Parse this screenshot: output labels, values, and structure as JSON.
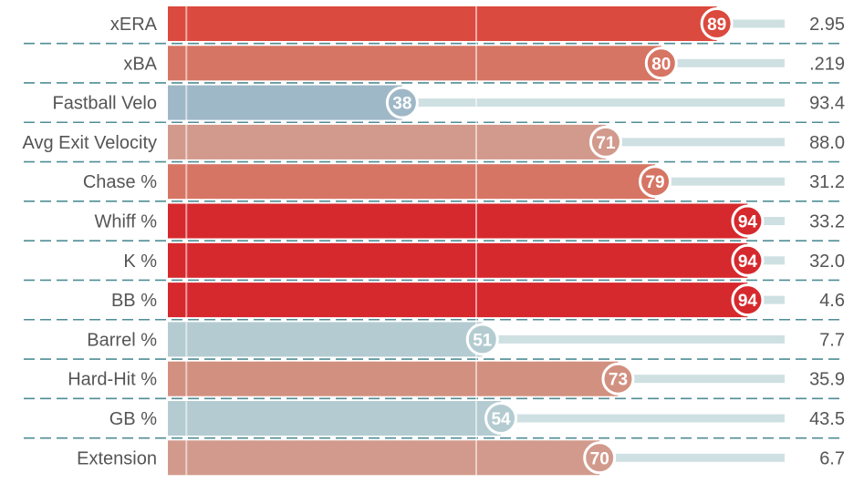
{
  "chart_data": {
    "type": "bar",
    "orientation": "horizontal",
    "xlim": [
      0,
      100
    ],
    "percentile_scale_midpoint": 50,
    "categories": [
      "xERA",
      "xBA",
      "Fastball Velo",
      "Avg Exit Velocity",
      "Chase %",
      "Whiff %",
      "K %",
      "BB %",
      "Barrel %",
      "Hard-Hit %",
      "GB %",
      "Extension"
    ],
    "percentiles": [
      89,
      80,
      38,
      71,
      79,
      94,
      94,
      94,
      51,
      73,
      54,
      70
    ],
    "values": [
      ".",
      ".",
      ".",
      ".",
      ".",
      ".",
      ".",
      ".",
      ".",
      ".",
      ".",
      "."
    ],
    "value_labels": [
      "2.95",
      ".219",
      "93.4",
      "88.0",
      "31.2",
      "33.2",
      "32.0",
      "4.6",
      "7.7",
      "35.9",
      "43.5",
      "6.7"
    ],
    "colors": [
      "#db4a3e",
      "#d67564",
      "#9fb8c7",
      "#d29a8c",
      "#d67564",
      "#d6292d",
      "#d6292d",
      "#d6292d",
      "#b4ccd1",
      "#d29080",
      "#b4ccd1",
      "#d29a8c"
    ],
    "track_color": "#cfe0e2",
    "grid": true,
    "legend": "none"
  }
}
